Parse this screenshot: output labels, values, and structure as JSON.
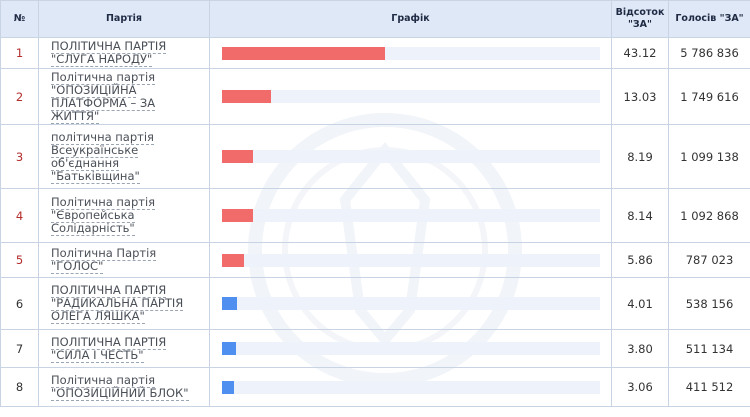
{
  "table": {
    "headers": {
      "num": "№",
      "party": "Партія",
      "graph": "Графік",
      "pct": "Відсоток \"ЗА\"",
      "votes": "Голосів \"ЗА\""
    },
    "rows": [
      {
        "num": "1",
        "party": "ПОЛІТИЧНА ПАРТІЯ \"СЛУГА НАРОДУ\"",
        "percent": "43.12",
        "votes": "5 786 836",
        "bar_color": "#f26b6b",
        "bar_fraction": 0.431
      },
      {
        "num": "2",
        "party": "Політична партія \"ОПОЗИЦІЙНА ПЛАТФОРМА – ЗА ЖИТТЯ\"",
        "percent": "13.03",
        "votes": "1 749 616",
        "bar_color": "#f26b6b",
        "bar_fraction": 0.13
      },
      {
        "num": "3",
        "party": "політична партія Всеукраїнське об'єднання \"Батьківщина\"",
        "percent": "8.19",
        "votes": "1 099 138",
        "bar_color": "#f26b6b",
        "bar_fraction": 0.082
      },
      {
        "num": "4",
        "party": "Політична партія \"Європейська Солідарність\"",
        "percent": "8.14",
        "votes": "1 092 868",
        "bar_color": "#f26b6b",
        "bar_fraction": 0.081
      },
      {
        "num": "5",
        "party": "Політична Партія \"ГОЛОС\"",
        "percent": "5.86",
        "votes": "787 023",
        "bar_color": "#f26b6b",
        "bar_fraction": 0.059
      },
      {
        "num": "6",
        "party": "ПОЛІТИЧНА ПАРТІЯ \"РАДИКАЛЬНА ПАРТІЯ ОЛЕГА ЛЯШКА\"",
        "percent": "4.01",
        "votes": "538 156",
        "bar_color": "#4f8ff0",
        "bar_fraction": 0.04
      },
      {
        "num": "7",
        "party": "ПОЛІТИЧНА ПАРТІЯ \"СИЛА І ЧЕСТЬ\"",
        "percent": "3.80",
        "votes": "511 134",
        "bar_color": "#4f8ff0",
        "bar_fraction": 0.038
      },
      {
        "num": "8",
        "party": "Політична партія \"ОПОЗИЦІЙНИЙ БЛОК\"",
        "percent": "3.06",
        "votes": "411 512",
        "bar_color": "#4f8ff0",
        "bar_fraction": 0.031
      }
    ]
  }
}
